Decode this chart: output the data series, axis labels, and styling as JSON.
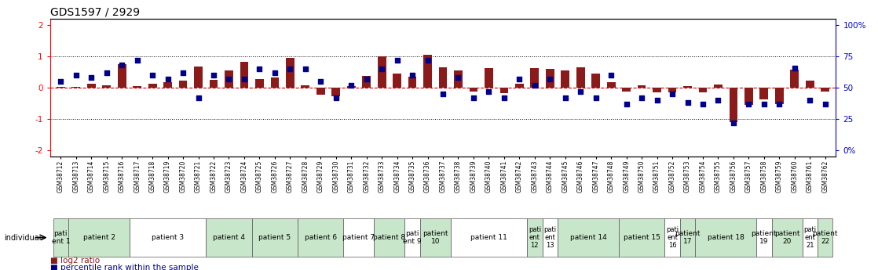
{
  "title": "GDS1597 / 2929",
  "samples": [
    "GSM38712",
    "GSM38713",
    "GSM38714",
    "GSM38715",
    "GSM38716",
    "GSM38717",
    "GSM38718",
    "GSM38719",
    "GSM38720",
    "GSM38721",
    "GSM38722",
    "GSM38723",
    "GSM38724",
    "GSM38725",
    "GSM38726",
    "GSM38727",
    "GSM38728",
    "GSM38729",
    "GSM38730",
    "GSM38731",
    "GSM38732",
    "GSM38733",
    "GSM38734",
    "GSM38735",
    "GSM38736",
    "GSM38737",
    "GSM38738",
    "GSM38739",
    "GSM38740",
    "GSM38741",
    "GSM38742",
    "GSM38743",
    "GSM38744",
    "GSM38745",
    "GSM38746",
    "GSM38747",
    "GSM38748",
    "GSM38749",
    "GSM38750",
    "GSM38751",
    "GSM38752",
    "GSM38753",
    "GSM38754",
    "GSM38755",
    "GSM38756",
    "GSM38757",
    "GSM38758",
    "GSM38759",
    "GSM38760",
    "GSM38761",
    "GSM38762"
  ],
  "log2_ratio": [
    0.02,
    0.03,
    0.12,
    0.08,
    0.75,
    0.05,
    0.12,
    0.18,
    0.22,
    0.68,
    0.25,
    0.55,
    0.82,
    0.28,
    0.32,
    0.95,
    0.08,
    -0.22,
    -0.28,
    0.06,
    0.38,
    1.0,
    0.45,
    0.35,
    1.05,
    0.65,
    0.55,
    -0.12,
    0.62,
    -0.18,
    0.12,
    0.62,
    0.6,
    0.55,
    0.65,
    0.45,
    0.18,
    -0.12,
    0.08,
    -0.15,
    -0.15,
    0.05,
    -0.15,
    0.1,
    -1.1,
    -0.55,
    -0.38,
    -0.52,
    0.58,
    0.22,
    -0.12
  ],
  "percentile": [
    55,
    60,
    58,
    62,
    68,
    72,
    60,
    57,
    62,
    42,
    60,
    57,
    57,
    65,
    62,
    65,
    65,
    55,
    42,
    52,
    57,
    65,
    72,
    60,
    72,
    45,
    58,
    42,
    47,
    42,
    57,
    52,
    57,
    42,
    47,
    42,
    60,
    37,
    42,
    40,
    45,
    38,
    37,
    40,
    22,
    37,
    37,
    37,
    66,
    40,
    37
  ],
  "patients": [
    {
      "label": "pati\nent 1",
      "start": 0,
      "end": 1,
      "color": "#c8e6c9"
    },
    {
      "label": "patient 2",
      "start": 1,
      "end": 5,
      "color": "#c8e6c9"
    },
    {
      "label": "patient 3",
      "start": 5,
      "end": 10,
      "color": "white"
    },
    {
      "label": "patient 4",
      "start": 10,
      "end": 13,
      "color": "#c8e6c9"
    },
    {
      "label": "patient 5",
      "start": 13,
      "end": 16,
      "color": "#c8e6c9"
    },
    {
      "label": "patient 6",
      "start": 16,
      "end": 19,
      "color": "#c8e6c9"
    },
    {
      "label": "patient 7",
      "start": 19,
      "end": 21,
      "color": "white"
    },
    {
      "label": "patient 8",
      "start": 21,
      "end": 23,
      "color": "#c8e6c9"
    },
    {
      "label": "pati\nent 9",
      "start": 23,
      "end": 24,
      "color": "white"
    },
    {
      "label": "patient\n10",
      "start": 24,
      "end": 26,
      "color": "#c8e6c9"
    },
    {
      "label": "patient 11",
      "start": 26,
      "end": 31,
      "color": "white"
    },
    {
      "label": "pati\nent\n12",
      "start": 31,
      "end": 32,
      "color": "#c8e6c9"
    },
    {
      "label": "pati\nent\n13",
      "start": 32,
      "end": 33,
      "color": "white"
    },
    {
      "label": "patient 14",
      "start": 33,
      "end": 37,
      "color": "#c8e6c9"
    },
    {
      "label": "patient 15",
      "start": 37,
      "end": 40,
      "color": "#c8e6c9"
    },
    {
      "label": "pati\nent\n16",
      "start": 40,
      "end": 41,
      "color": "white"
    },
    {
      "label": "patient\n17",
      "start": 41,
      "end": 42,
      "color": "#c8e6c9"
    },
    {
      "label": "patient 18",
      "start": 42,
      "end": 46,
      "color": "#c8e6c9"
    },
    {
      "label": "patient\n19",
      "start": 46,
      "end": 47,
      "color": "white"
    },
    {
      "label": "patient\n20",
      "start": 47,
      "end": 49,
      "color": "#c8e6c9"
    },
    {
      "label": "pati\nent\n21",
      "start": 49,
      "end": 50,
      "color": "white"
    },
    {
      "label": "patient\n22",
      "start": 50,
      "end": 51,
      "color": "#c8e6c9"
    }
  ],
  "ylim": [
    -2.2,
    2.2
  ],
  "yticks_left": [
    -2,
    -1,
    0,
    1,
    2
  ],
  "bar_color": "#8B1A1A",
  "dot_color": "#00008B",
  "hline_color": "#cc0000",
  "right_axis_color": "#0000cc",
  "title_fontsize": 10,
  "sample_fontsize": 5.5,
  "patient_fontsize": 6.5,
  "legend_fontsize": 7.5
}
